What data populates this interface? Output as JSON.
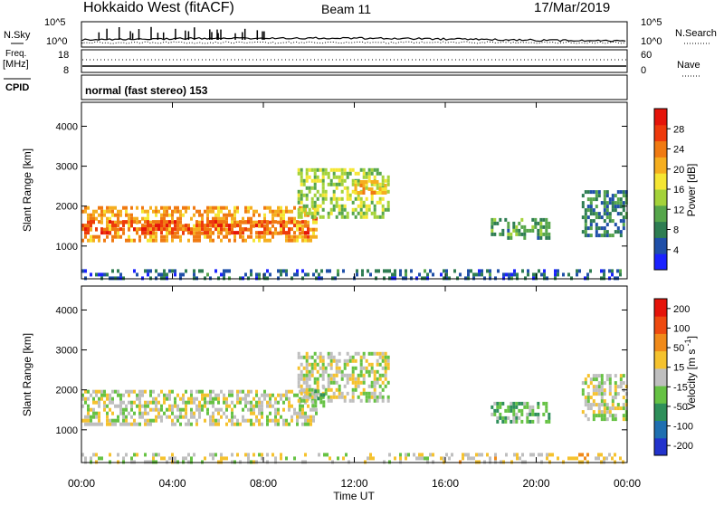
{
  "header": {
    "station": "Hokkaido West (fitACF)",
    "beam": "Beam 11",
    "date": "17/Mar/2019"
  },
  "noise_panel": {
    "left_label": "N.Sky",
    "left_ticks": [
      "10^5",
      "10^0"
    ],
    "right_label": "N.Search",
    "right_ticks": [
      "10^5",
      "10^0"
    ]
  },
  "freq_panel": {
    "left_label_line1": "Freq.",
    "left_label_line2": "[MHz]",
    "left_ticks": [
      "18",
      "8"
    ],
    "right_label": "Nave",
    "right_ticks": [
      "60",
      "0"
    ]
  },
  "cpid_panel": {
    "label": "CPID",
    "text": "normal (fast stereo) 153"
  },
  "chart_data": [
    {
      "type": "heatmap",
      "ylabel": "Slant Range [km]",
      "xlabel": "",
      "x_ticks": [
        "00:00",
        "04:00",
        "08:00",
        "12:00",
        "16:00",
        "20:00",
        "00:00"
      ],
      "x_range_hours": [
        0,
        24
      ],
      "ylim": [
        180,
        4600
      ],
      "y_ticks": [
        1000,
        2000,
        3000,
        4000
      ],
      "colorbar": {
        "label": "Power [dB]",
        "ticks": [
          "4",
          "8",
          "12",
          "16",
          "20",
          "24",
          "28"
        ],
        "range": [
          0,
          32
        ],
        "colors": [
          "#1a22ff",
          "#1f4fa8",
          "#2e7d52",
          "#56a64b",
          "#a4d23a",
          "#f5e633",
          "#f5ae1f",
          "#f07a12",
          "#ee3a0c",
          "#e5140a"
        ]
      },
      "echo_regions": [
        {
          "t_start": 0.0,
          "t_end": 10.3,
          "r_low": 1100,
          "r_high": 2000,
          "level": 22
        },
        {
          "t_start": 0.0,
          "t_end": 10.0,
          "r_low": 1300,
          "r_high": 1650,
          "level": 26
        },
        {
          "t_start": 9.5,
          "t_end": 13.5,
          "r_low": 1700,
          "r_high": 2950,
          "level": 14
        },
        {
          "t_start": 12.0,
          "t_end": 13.4,
          "r_low": 2300,
          "r_high": 2650,
          "level": 20
        },
        {
          "t_start": 18.0,
          "t_end": 20.6,
          "r_low": 1200,
          "r_high": 1700,
          "level": 10
        },
        {
          "t_start": 22.0,
          "t_end": 24.0,
          "r_low": 1300,
          "r_high": 2400,
          "level": 8
        },
        {
          "t_start": 0.0,
          "t_end": 24.0,
          "r_low": 180,
          "r_high": 420,
          "level": 6
        }
      ]
    },
    {
      "type": "heatmap",
      "ylabel": "Slant Range [km]",
      "xlabel": "Time UT",
      "x_ticks": [
        "00:00",
        "04:00",
        "08:00",
        "12:00",
        "16:00",
        "20:00",
        "00:00"
      ],
      "x_range_hours": [
        0,
        24
      ],
      "ylim": [
        180,
        4600
      ],
      "y_ticks": [
        1000,
        2000,
        3000,
        4000
      ],
      "colorbar": {
        "label": "Velocity [m s^-1]",
        "ticks": [
          "200",
          "100",
          "50",
          "15",
          "-15",
          "-50",
          "-100",
          "-200"
        ],
        "range": [
          -250,
          250
        ],
        "colors": [
          "#2233cc",
          "#1f6fb0",
          "#2e8f5a",
          "#66c244",
          "#bfbfbf",
          "#f5c22e",
          "#f08a1a",
          "#ee4a10",
          "#e5140a"
        ]
      },
      "echo_regions": [
        {
          "t_start": 0.0,
          "t_end": 10.3,
          "r_low": 1100,
          "r_high": 2000,
          "level": 0
        },
        {
          "t_start": 9.5,
          "t_end": 13.5,
          "r_low": 1700,
          "r_high": 2950,
          "level": 0
        },
        {
          "t_start": 10.0,
          "t_end": 10.7,
          "r_low": 1600,
          "r_high": 2100,
          "level": -70
        },
        {
          "t_start": 18.0,
          "t_end": 20.6,
          "r_low": 1200,
          "r_high": 1700,
          "level": -60
        },
        {
          "t_start": 22.0,
          "t_end": 24.0,
          "r_low": 1300,
          "r_high": 2400,
          "level": 0
        },
        {
          "t_start": 16.0,
          "t_end": 24.0,
          "r_low": 180,
          "r_high": 420,
          "level": 40
        },
        {
          "t_start": 0.0,
          "t_end": 16.0,
          "r_low": 180,
          "r_high": 420,
          "level": 0
        }
      ]
    }
  ]
}
